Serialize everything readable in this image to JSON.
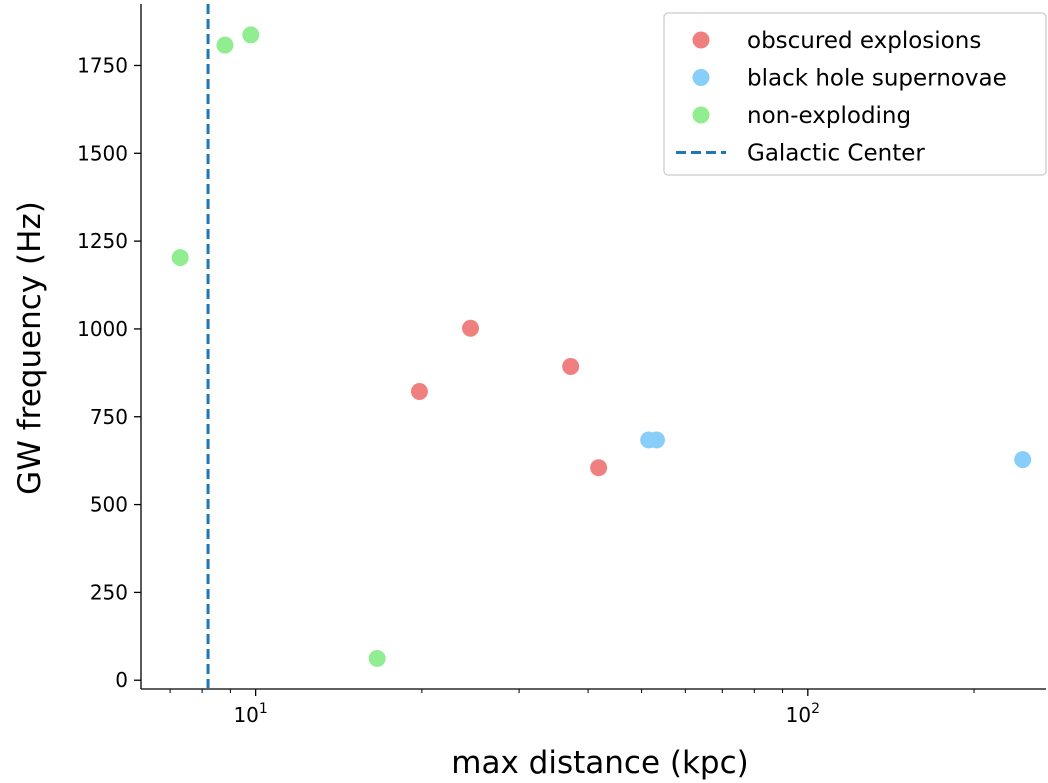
{
  "chart_data": {
    "type": "scatter",
    "title": "",
    "xlabel": "max distance (kpc)",
    "ylabel": "GW frequency (Hz)",
    "xscale": "log",
    "xlim": [
      6.2,
      270
    ],
    "ylim": [
      -25,
      1925
    ],
    "grid": false,
    "legend_position": "top-right",
    "x_ticks": [
      {
        "value": 10,
        "base": "10",
        "exp": "1"
      },
      {
        "value": 100,
        "base": "10",
        "exp": "2"
      }
    ],
    "y_ticks": [
      {
        "value": 0,
        "label": "0"
      },
      {
        "value": 250,
        "label": "250"
      },
      {
        "value": 500,
        "label": "500"
      },
      {
        "value": 750,
        "label": "750"
      },
      {
        "value": 1000,
        "label": "1000"
      },
      {
        "value": 1250,
        "label": "1250"
      },
      {
        "value": 1500,
        "label": "1500"
      },
      {
        "value": 1750,
        "label": "1750"
      }
    ],
    "series": [
      {
        "name": "obscured explosions",
        "color": "#f08080",
        "points": [
          {
            "x": 19.8,
            "y": 822
          },
          {
            "x": 24.5,
            "y": 1002
          },
          {
            "x": 37.2,
            "y": 893
          },
          {
            "x": 41.8,
            "y": 605
          }
        ]
      },
      {
        "name": "black hole supernovae",
        "color": "#87cefa",
        "points": [
          {
            "x": 51.5,
            "y": 684
          },
          {
            "x": 53.2,
            "y": 684
          },
          {
            "x": 245,
            "y": 628
          }
        ]
      },
      {
        "name": "non-exploding",
        "color": "#90ee90",
        "points": [
          {
            "x": 7.3,
            "y": 1203
          },
          {
            "x": 8.8,
            "y": 1808
          },
          {
            "x": 9.8,
            "y": 1837
          },
          {
            "x": 16.6,
            "y": 62
          }
        ]
      }
    ],
    "reference_lines": [
      {
        "name": "Galactic Center",
        "orientation": "vertical",
        "x": 8.2,
        "color": "#1f77b4",
        "style": "dashed"
      }
    ]
  }
}
